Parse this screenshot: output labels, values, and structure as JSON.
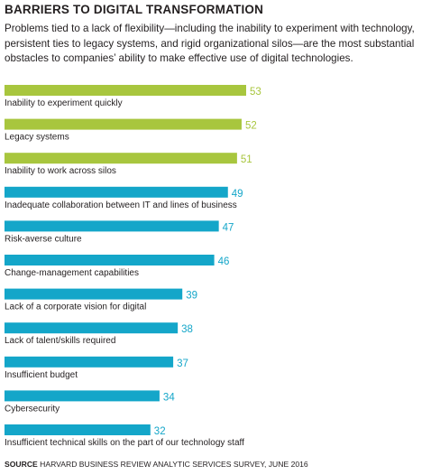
{
  "header": {
    "title": "BARRIERS TO DIGITAL TRANSFORMATION",
    "subtitle": "Problems tied to a lack of flexibility—including the inability to experiment with technology, persistent ties to legacy systems, and rigid organizational silos—are the most substantial obstacles to companies’ ability to make effective use of digital technologies."
  },
  "colors": {
    "highlight": "#a8c63e",
    "base": "#14a6c9",
    "text": "#231f20"
  },
  "chart_data": {
    "type": "bar",
    "orientation": "horizontal",
    "categories": [
      "Inability to experiment quickly",
      "Legacy systems",
      "Inability to work across silos",
      "Inadequate collaboration between IT and lines of business",
      "Risk-averse culture",
      "Change-management capabilities",
      "Lack of a corporate vision for digital",
      "Lack of talent/skills required",
      "Insufficient budget",
      "Cybersecurity",
      "Insufficient technical skills on the part of our technology staff"
    ],
    "values": [
      53,
      52,
      51,
      49,
      47,
      46,
      39,
      38,
      37,
      34,
      32
    ],
    "highlighted": [
      true,
      true,
      true,
      false,
      false,
      false,
      false,
      false,
      false,
      false,
      false
    ],
    "xlim": [
      0,
      100
    ],
    "grid": false,
    "legend": "none"
  },
  "footer": {
    "source_label": "SOURCE",
    "source_text": "HARVARD BUSINESS REVIEW ANALYTIC SERVICES SURVEY, JUNE 2016"
  }
}
